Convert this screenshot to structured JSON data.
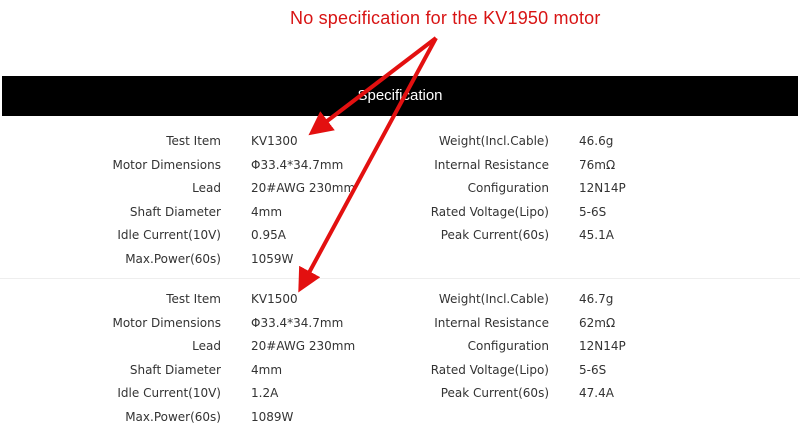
{
  "annotation": "No specification for the KV1950 motor",
  "header": {
    "title": "Specification"
  },
  "colors": {
    "annotation": "#d81414",
    "header_bg": "#000000"
  },
  "blocks": [
    {
      "rows": [
        {
          "l1": "Test Item",
          "v1": "KV1300",
          "l2": "Weight(Incl.Cable)",
          "v2": "46.6g"
        },
        {
          "l1": "Motor Dimensions",
          "v1": "Φ33.4*34.7mm",
          "l2": "Internal Resistance",
          "v2": "76mΩ"
        },
        {
          "l1": "Lead",
          "v1": "20#AWG 230mm",
          "l2": "Configuration",
          "v2": "12N14P"
        },
        {
          "l1": "Shaft Diameter",
          "v1": "4mm",
          "l2": "Rated Voltage(Lipo)",
          "v2": "5-6S"
        },
        {
          "l1": "Idle Current(10V)",
          "v1": "0.95A",
          "l2": "Peak Current(60s)",
          "v2": "45.1A"
        },
        {
          "l1": "Max.Power(60s)",
          "v1": "1059W",
          "l2": "",
          "v2": ""
        }
      ]
    },
    {
      "rows": [
        {
          "l1": "Test Item",
          "v1": "KV1500",
          "l2": "Weight(Incl.Cable)",
          "v2": "46.7g"
        },
        {
          "l1": "Motor Dimensions",
          "v1": "Φ33.4*34.7mm",
          "l2": "Internal Resistance",
          "v2": "62mΩ"
        },
        {
          "l1": "Lead",
          "v1": "20#AWG 230mm",
          "l2": "Configuration",
          "v2": "12N14P"
        },
        {
          "l1": "Shaft Diameter",
          "v1": "4mm",
          "l2": "Rated Voltage(Lipo)",
          "v2": "5-6S"
        },
        {
          "l1": "Idle Current(10V)",
          "v1": "1.2A",
          "l2": "Peak Current(60s)",
          "v2": "47.4A"
        },
        {
          "l1": "Max.Power(60s)",
          "v1": "1089W",
          "l2": "",
          "v2": ""
        }
      ]
    }
  ]
}
